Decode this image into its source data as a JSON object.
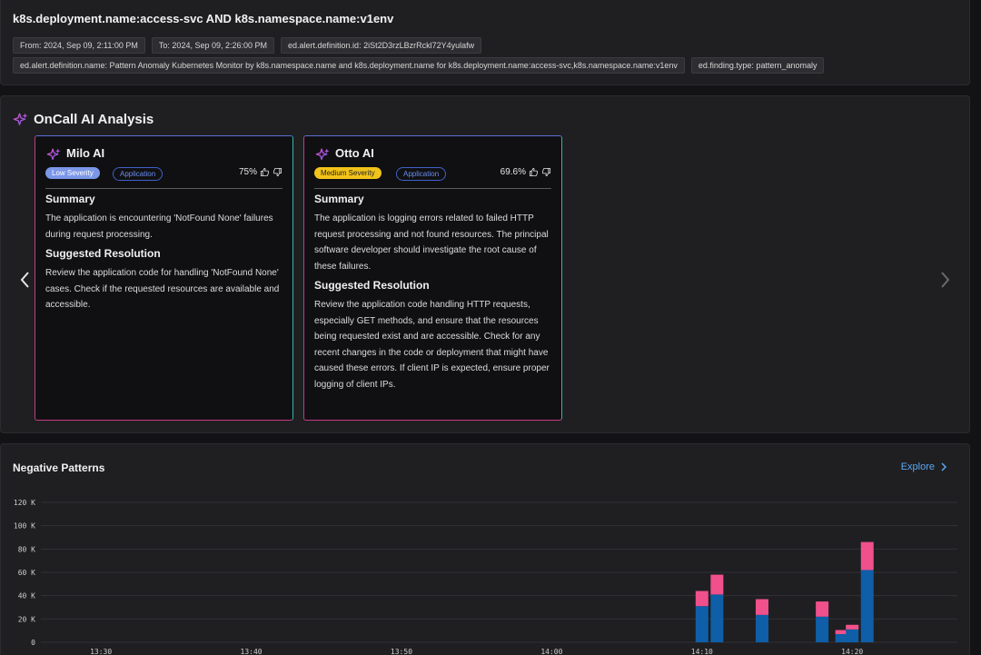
{
  "header": {
    "query": "k8s.deployment.name:access-svc AND k8s.namespace.name:v1env",
    "tags_row1": [
      "From: 2024, Sep 09, 2:11:00 PM",
      "To: 2024, Sep 09, 2:26:00 PM",
      "ed.alert.definition.id: 2iSt2D3rzLBzrRckl72Y4yulafw"
    ],
    "tags_row2": [
      "ed.alert.definition.name: Pattern Anomaly Kubernetes Monitor by k8s.namespace.name and k8s.deployment.name for k8s.deployment.name:access-svc,k8s.namespace.name:v1env",
      "ed.finding.type: pattern_anomaly"
    ]
  },
  "ai": {
    "title": "OnCall AI Analysis",
    "icons": {
      "title": "sparkle-icon",
      "prev": "chevron-left-icon",
      "next": "chevron-right-icon"
    },
    "cards": [
      {
        "name": "Milo AI",
        "severity": "Low Severity",
        "category": "Application",
        "score": "75%",
        "summary_heading": "Summary",
        "summary": "The application is encountering 'NotFound None' failures during request processing.",
        "resolution_heading": "Suggested Resolution",
        "resolution": "Review the application code for handling 'NotFound None' cases. Check if the requested resources are available and accessible."
      },
      {
        "name": "Otto AI",
        "severity": "Medium Severity",
        "category": "Application",
        "score": "69.6%",
        "summary_heading": "Summary",
        "summary": "The application is logging errors related to failed HTTP request processing and not found resources. The principal software developer should investigate the root cause of these failures.",
        "resolution_heading": "Suggested Resolution",
        "resolution": "Review the application code handling HTTP requests, especially GET methods, and ensure that the resources being requested exist and are accessible. Check for any recent changes in the code or deployment that might have caused these errors. If client IP is expected, ensure proper logging of client IPs."
      }
    ]
  },
  "patterns": {
    "title": "Negative Patterns",
    "explore_label": "Explore"
  },
  "chart_data": {
    "type": "bar",
    "stacked": true,
    "y_tick_labels": [
      "0",
      "20 K",
      "40 K",
      "60 K",
      "80 K",
      "100 K",
      "120 K"
    ],
    "ylim": [
      0,
      120000
    ],
    "x_tick_labels": [
      "13:30",
      "13:40",
      "13:50",
      "14:00",
      "14:10",
      "14:20"
    ],
    "x_tick_minutes": [
      810,
      820,
      830,
      840,
      850,
      860
    ],
    "xlim_minutes": [
      806,
      867
    ],
    "bar_times_minutes": [
      850,
      851,
      852,
      854,
      856,
      858,
      861,
      863
    ],
    "bar_time_labels": [
      "14:10",
      "14:11",
      "14:12",
      "14:14",
      "14:16",
      "14:18",
      "14:21",
      "14:23"
    ],
    "series": [
      {
        "color": "#0f5ea8",
        "values": [
          31000,
          41000,
          0,
          23500,
          0,
          22000,
          62000,
          0
        ]
      },
      {
        "color": "#f0508c",
        "values": [
          13000,
          17000,
          0,
          13500,
          0,
          13000,
          24000,
          0
        ]
      }
    ],
    "extra_bars": [
      {
        "time_minutes": 859.3,
        "values": [
          7000,
          3500
        ]
      },
      {
        "time_minutes": 860.0,
        "values": [
          11000,
          4000
        ]
      }
    ],
    "grid": true,
    "legend": "none"
  }
}
